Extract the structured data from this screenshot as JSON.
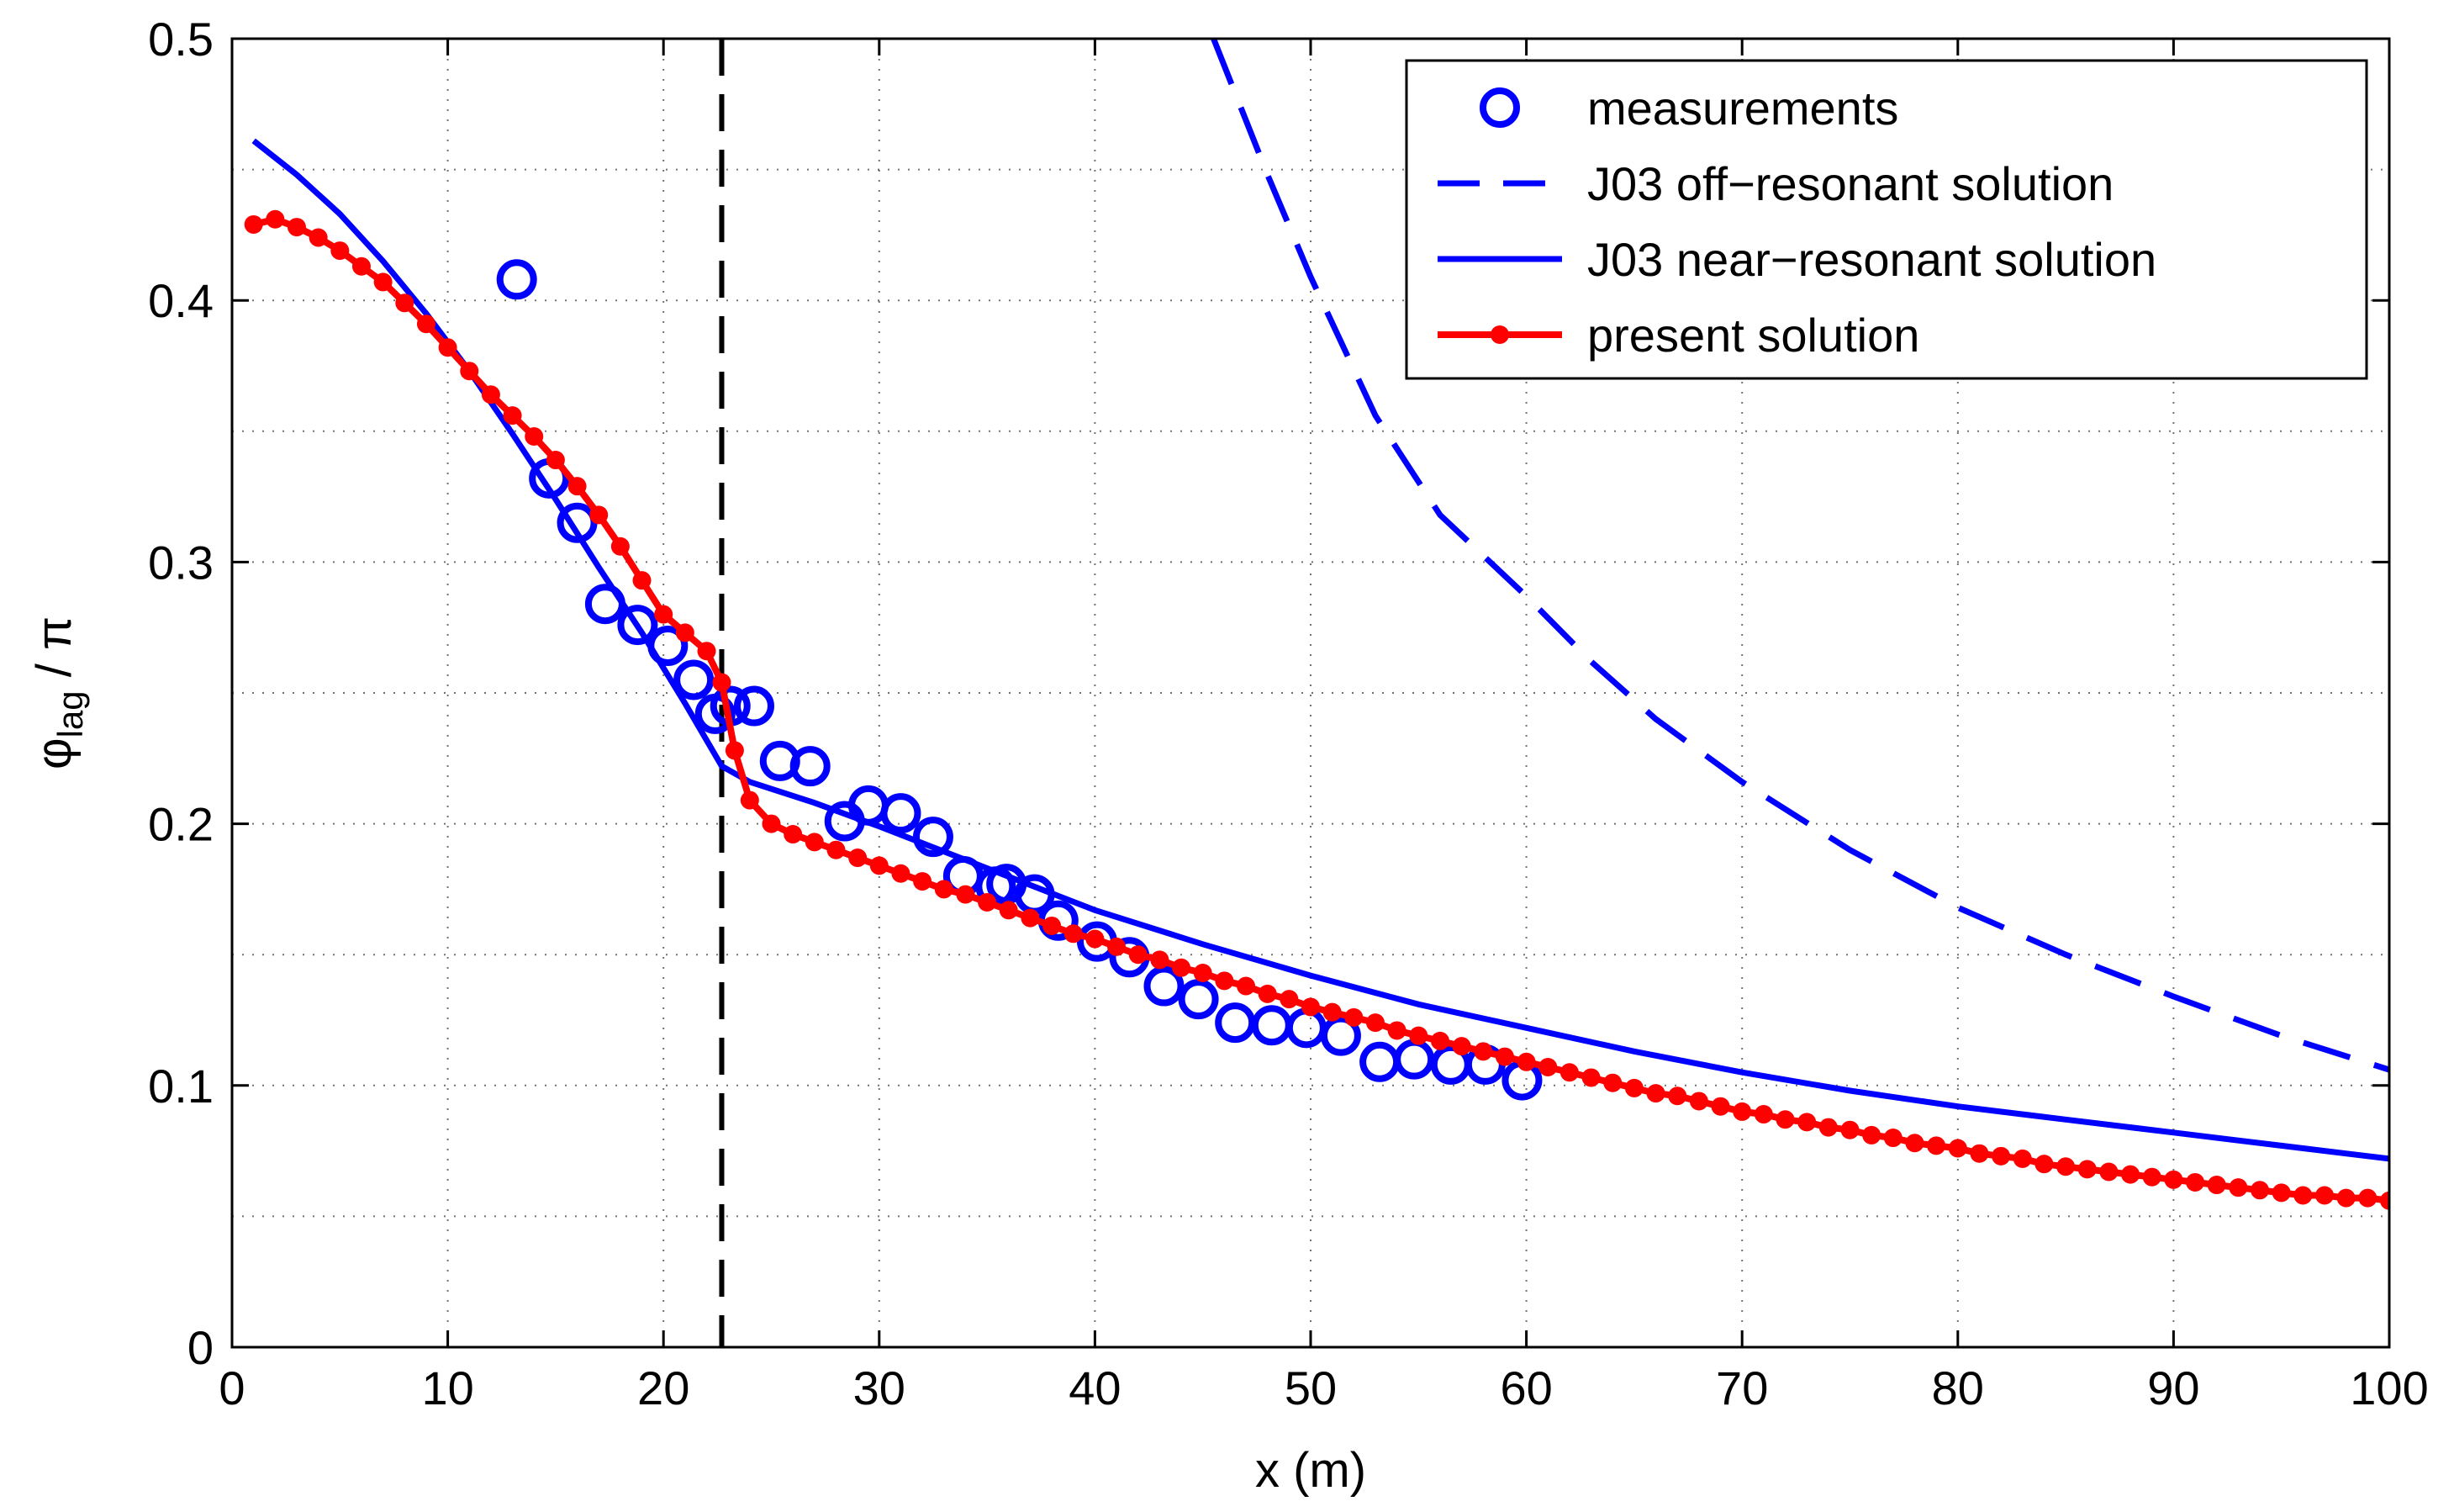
{
  "chart_data": {
    "type": "line",
    "title": "",
    "xlabel": "x (m)",
    "ylabel": {
      "base": "φ",
      "sub": "lag",
      "suffix": " / π"
    },
    "xlim": [
      0,
      100
    ],
    "ylim": [
      0,
      0.5
    ],
    "xticks": [
      0,
      10,
      20,
      30,
      40,
      50,
      60,
      70,
      80,
      90,
      100
    ],
    "yticks": [
      0,
      0.1,
      0.2,
      0.3,
      0.4,
      0.5
    ],
    "xtick_labels": [
      "0",
      "10",
      "20",
      "30",
      "40",
      "50",
      "60",
      "70",
      "80",
      "90",
      "100"
    ],
    "ytick_labels": [
      "0",
      "0.1",
      "0.2",
      "0.3",
      "0.4",
      "0.5"
    ],
    "grid": true,
    "legend_position": "top-right",
    "vertical_line": {
      "x": 22.7,
      "style": "dashed",
      "color": "#000000"
    },
    "series": [
      {
        "name": "measurements",
        "style": "markers",
        "marker": "open-circle",
        "color": "#0000ff",
        "x": [
          13.2,
          14.7,
          16.0,
          17.3,
          18.8,
          20.2,
          21.4,
          22.4,
          23.1,
          24.2,
          25.4,
          26.8,
          28.4,
          29.5,
          31.0,
          32.5,
          33.9,
          35.4,
          35.9,
          37.2,
          38.3,
          40.1,
          41.6,
          43.2,
          44.8,
          46.5,
          48.2,
          49.8,
          51.4,
          53.2,
          54.8,
          56.5,
          58.1,
          59.8
        ],
        "y": [
          0.408,
          0.332,
          0.315,
          0.284,
          0.276,
          0.268,
          0.255,
          0.242,
          0.245,
          0.245,
          0.224,
          0.222,
          0.201,
          0.207,
          0.204,
          0.195,
          0.18,
          0.176,
          0.177,
          0.173,
          0.163,
          0.155,
          0.149,
          0.138,
          0.133,
          0.124,
          0.123,
          0.122,
          0.119,
          0.109,
          0.11,
          0.108,
          0.108,
          0.102
        ]
      },
      {
        "name": "J03 off−resonant solution",
        "style": "dashed",
        "color": "#0000ff",
        "x": [
          45.5,
          48,
          50,
          53,
          56,
          60,
          63,
          66,
          70,
          75,
          80,
          85,
          90,
          95,
          100
        ],
        "y": [
          0.5,
          0.448,
          0.409,
          0.356,
          0.318,
          0.287,
          0.262,
          0.24,
          0.216,
          0.19,
          0.168,
          0.15,
          0.134,
          0.119,
          0.106
        ]
      },
      {
        "name": "J03 near−resonant solution",
        "style": "solid",
        "color": "#0000ff",
        "x": [
          1,
          3,
          5,
          7,
          9,
          11,
          13,
          15,
          17,
          19,
          21,
          22.7,
          24,
          27,
          30,
          35,
          40,
          45,
          50,
          55,
          60,
          65,
          70,
          75,
          80,
          85,
          90,
          95,
          100
        ],
        "y": [
          0.461,
          0.448,
          0.433,
          0.415,
          0.395,
          0.373,
          0.349,
          0.324,
          0.298,
          0.273,
          0.246,
          0.222,
          0.216,
          0.208,
          0.199,
          0.183,
          0.167,
          0.154,
          0.142,
          0.131,
          0.122,
          0.113,
          0.105,
          0.098,
          0.092,
          0.087,
          0.082,
          0.077,
          0.072
        ]
      },
      {
        "name": "present solution",
        "style": "solid-with-dots",
        "color": "#ff0000",
        "x": [
          1,
          2,
          3,
          4,
          5,
          6,
          7,
          8,
          9,
          10,
          11,
          12,
          13,
          14,
          15,
          16,
          17,
          18,
          19,
          20,
          21,
          22,
          22.7,
          23.3,
          24,
          25,
          26,
          27,
          28,
          29,
          30,
          31,
          32,
          33,
          34,
          35,
          36,
          37,
          38,
          39,
          40,
          41,
          42,
          43,
          44,
          45,
          46,
          47,
          48,
          49,
          50,
          51,
          52,
          53,
          54,
          55,
          56,
          57,
          58,
          59,
          60,
          61,
          62,
          63,
          64,
          65,
          66,
          67,
          68,
          69,
          70,
          71,
          72,
          73,
          74,
          75,
          76,
          77,
          78,
          79,
          80,
          81,
          82,
          83,
          84,
          85,
          86,
          87,
          88,
          89,
          90,
          91,
          92,
          93,
          94,
          95,
          96,
          97,
          98,
          99,
          100
        ],
        "y": [
          0.429,
          0.431,
          0.428,
          0.424,
          0.419,
          0.413,
          0.407,
          0.399,
          0.391,
          0.382,
          0.373,
          0.364,
          0.356,
          0.348,
          0.339,
          0.329,
          0.318,
          0.306,
          0.293,
          0.28,
          0.273,
          0.266,
          0.254,
          0.228,
          0.209,
          0.2,
          0.196,
          0.193,
          0.19,
          0.187,
          0.184,
          0.181,
          0.178,
          0.175,
          0.173,
          0.17,
          0.167,
          0.164,
          0.161,
          0.158,
          0.156,
          0.153,
          0.15,
          0.148,
          0.145,
          0.143,
          0.14,
          0.138,
          0.135,
          0.133,
          0.13,
          0.128,
          0.126,
          0.124,
          0.121,
          0.119,
          0.117,
          0.115,
          0.113,
          0.111,
          0.109,
          0.107,
          0.105,
          0.103,
          0.101,
          0.099,
          0.097,
          0.096,
          0.094,
          0.092,
          0.09,
          0.089,
          0.087,
          0.086,
          0.084,
          0.083,
          0.081,
          0.08,
          0.078,
          0.077,
          0.076,
          0.074,
          0.073,
          0.072,
          0.07,
          0.069,
          0.068,
          0.067,
          0.066,
          0.065,
          0.064,
          0.063,
          0.062,
          0.061,
          0.06,
          0.059,
          0.058,
          0.058,
          0.057,
          0.057,
          0.056
        ]
      }
    ]
  }
}
